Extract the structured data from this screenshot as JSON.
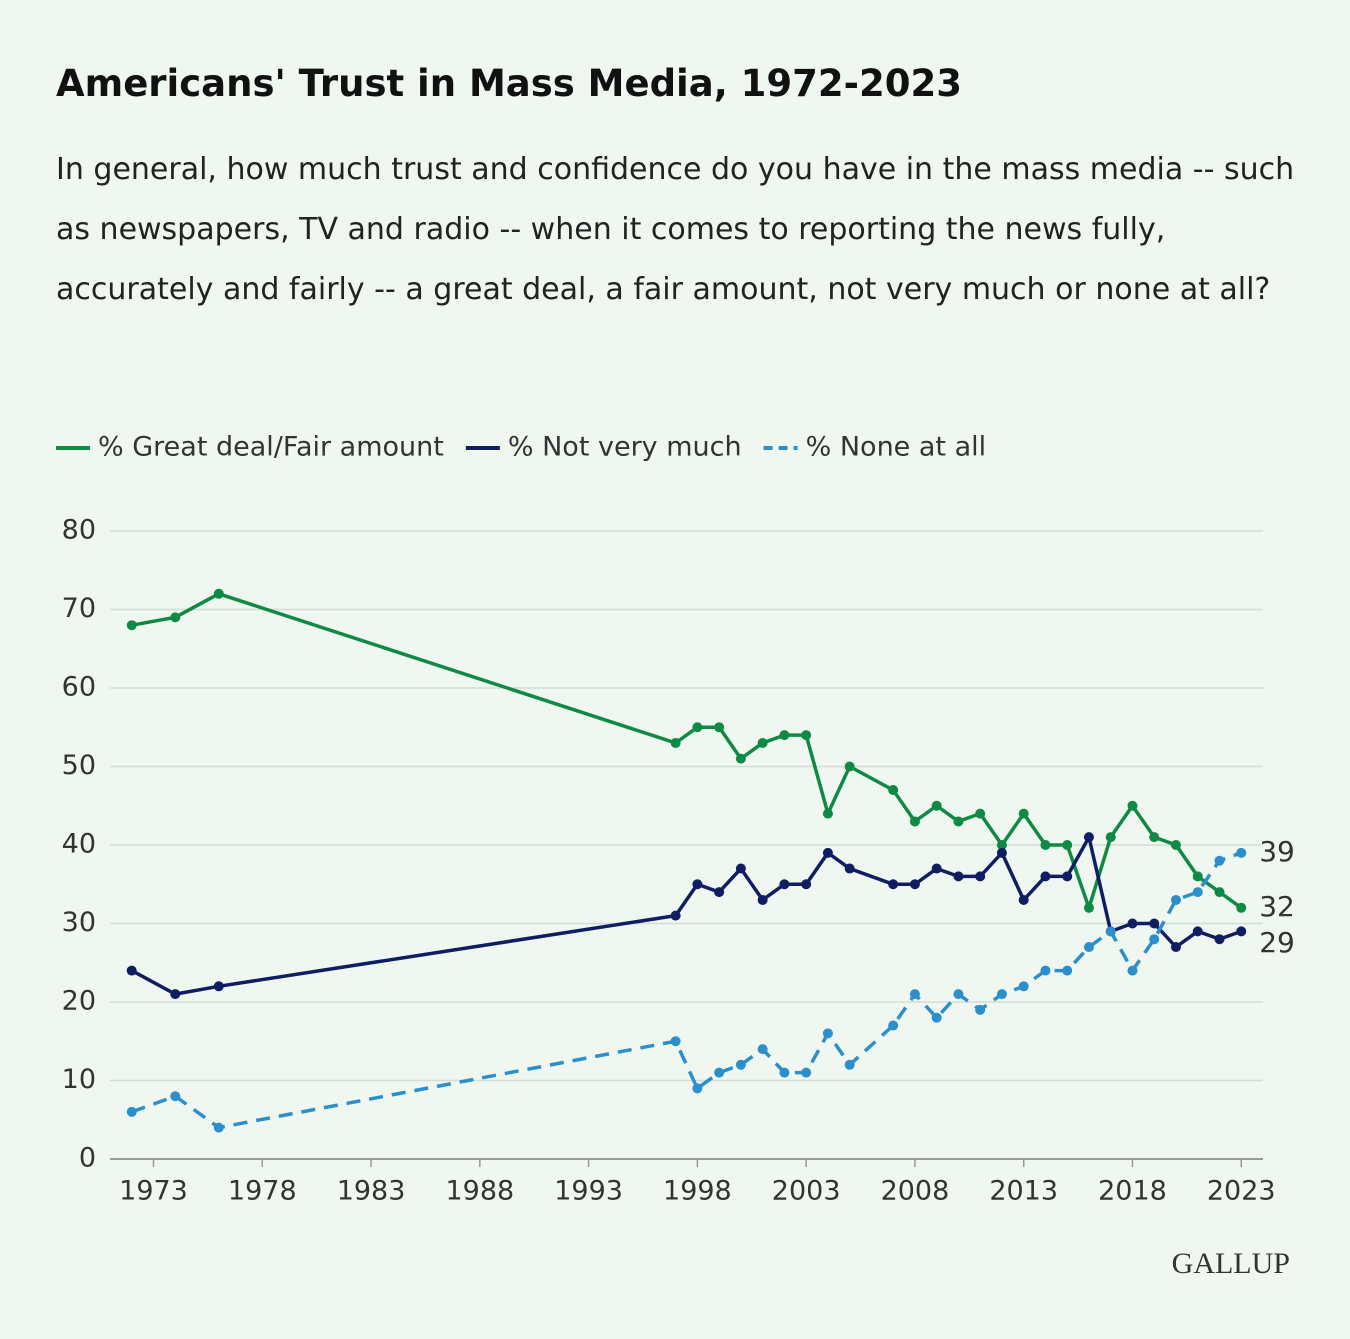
{
  "chart_data": {
    "type": "line",
    "title": "Americans' Trust in Mass Media, 1972-2023",
    "subtitle": "In general, how much trust and confidence do you have in the mass media -- such as newspapers, TV and radio -- when it comes to reporting the news fully, accurately and fairly -- a great deal, a fair amount, not very much or none at all?",
    "source": "GALLUP",
    "x": [
      1972,
      1974,
      1976,
      1997,
      1998,
      1999,
      2000,
      2001,
      2002,
      2003,
      2004,
      2005,
      2007,
      2008,
      2009,
      2010,
      2011,
      2012,
      2013,
      2014,
      2015,
      2016,
      2017,
      2018,
      2019,
      2020,
      2021,
      2022,
      2023
    ],
    "series": [
      {
        "name": "% Great deal/Fair amount",
        "color": "#0f8a44",
        "line_style": "solid",
        "values": [
          68,
          69,
          72,
          53,
          55,
          55,
          51,
          53,
          54,
          54,
          44,
          50,
          47,
          43,
          45,
          43,
          44,
          40,
          44,
          40,
          40,
          32,
          41,
          45,
          41,
          40,
          36,
          34,
          32
        ]
      },
      {
        "name": "% Not very much",
        "color": "#0f1e63",
        "line_style": "solid",
        "values": [
          24,
          21,
          22,
          31,
          35,
          34,
          37,
          33,
          35,
          35,
          39,
          37,
          35,
          35,
          37,
          36,
          36,
          39,
          33,
          36,
          36,
          41,
          29,
          30,
          30,
          27,
          29,
          28,
          29
        ]
      },
      {
        "name": "% None at all",
        "color": "#2b8fcc",
        "line_style": "dashed",
        "values": [
          6,
          8,
          4,
          15,
          9,
          11,
          12,
          14,
          11,
          11,
          16,
          12,
          17,
          21,
          18,
          21,
          19,
          21,
          22,
          24,
          24,
          27,
          29,
          24,
          28,
          33,
          34,
          38,
          39
        ]
      }
    ],
    "xlim": [
      1971,
      2024
    ],
    "xticks": [
      1973,
      1978,
      1983,
      1988,
      1993,
      1998,
      2003,
      2008,
      2013,
      2018,
      2023
    ],
    "ylim": [
      0,
      80
    ],
    "yticks": [
      0,
      10,
      20,
      30,
      40,
      50,
      60,
      70,
      80
    ],
    "grid": true,
    "end_labels": true
  }
}
